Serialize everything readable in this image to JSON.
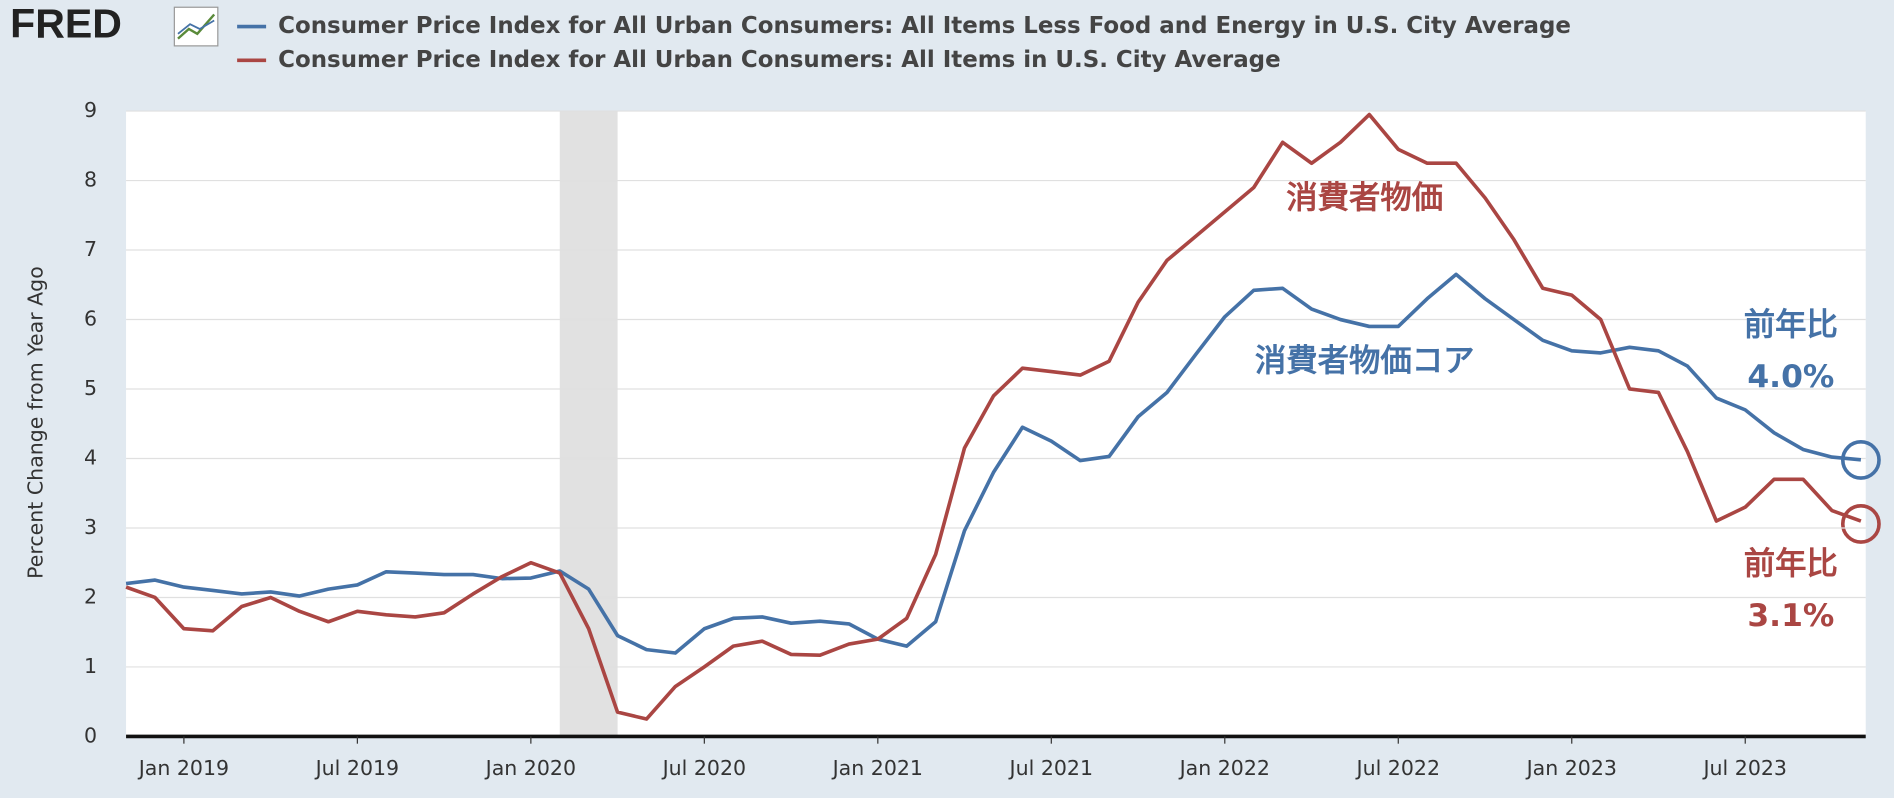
{
  "logo": "FRED",
  "chart_data": {
    "type": "line",
    "ylabel": "Percent Change from Year Ago",
    "x": [
      "2018-11",
      "2018-12",
      "2019-01",
      "2019-02",
      "2019-03",
      "2019-04",
      "2019-05",
      "2019-06",
      "2019-07",
      "2019-08",
      "2019-09",
      "2019-10",
      "2019-11",
      "2019-12",
      "2020-01",
      "2020-02",
      "2020-03",
      "2020-04",
      "2020-05",
      "2020-06",
      "2020-07",
      "2020-08",
      "2020-09",
      "2020-10",
      "2020-11",
      "2020-12",
      "2021-01",
      "2021-02",
      "2021-03",
      "2021-04",
      "2021-05",
      "2021-06",
      "2021-07",
      "2021-08",
      "2021-09",
      "2021-10",
      "2021-11",
      "2021-12",
      "2022-01",
      "2022-02",
      "2022-03",
      "2022-04",
      "2022-05",
      "2022-06",
      "2022-07",
      "2022-08",
      "2022-09",
      "2022-10",
      "2022-11",
      "2022-12",
      "2023-01",
      "2023-02",
      "2023-03",
      "2023-04",
      "2023-05",
      "2023-06",
      "2023-07",
      "2023-08",
      "2023-09",
      "2023-10",
      "2023-11"
    ],
    "series": [
      {
        "name": "Consumer Price Index for All Urban Consumers: All Items Less Food and Energy in U.S. City Average",
        "color": "#4572a7",
        "values": [
          2.2,
          2.25,
          2.15,
          2.1,
          2.05,
          2.08,
          2.02,
          2.12,
          2.18,
          2.37,
          2.35,
          2.33,
          2.33,
          2.27,
          2.28,
          2.38,
          2.12,
          1.45,
          1.25,
          1.2,
          1.55,
          1.7,
          1.72,
          1.63,
          1.66,
          1.62,
          1.4,
          1.3,
          1.65,
          2.96,
          3.8,
          4.45,
          4.25,
          3.97,
          4.03,
          4.6,
          4.95,
          5.5,
          6.04,
          6.42,
          6.45,
          6.15,
          6.0,
          5.9,
          5.9,
          6.3,
          6.65,
          6.3,
          6.0,
          5.7,
          5.55,
          5.52,
          5.6,
          5.55,
          5.33,
          4.87,
          4.7,
          4.37,
          4.13,
          4.02,
          3.98
        ]
      },
      {
        "name": "Consumer Price Index for All Urban Consumers: All Items in U.S. City Average",
        "color": "#aa4643",
        "values": [
          2.15,
          2.0,
          1.55,
          1.52,
          1.87,
          2.0,
          1.8,
          1.65,
          1.8,
          1.75,
          1.72,
          1.78,
          2.05,
          2.3,
          2.5,
          2.35,
          1.55,
          0.35,
          0.25,
          0.72,
          1.0,
          1.3,
          1.37,
          1.18,
          1.17,
          1.33,
          1.4,
          1.7,
          2.62,
          4.15,
          4.9,
          5.3,
          5.25,
          5.2,
          5.4,
          6.25,
          6.85,
          7.2,
          7.55,
          7.9,
          8.55,
          8.25,
          8.55,
          8.95,
          8.45,
          8.25,
          8.25,
          7.75,
          7.15,
          6.45,
          6.35,
          6.0,
          5.0,
          4.95,
          4.1,
          3.1,
          3.3,
          3.7,
          3.7,
          3.25,
          3.1
        ]
      }
    ],
    "ylim": [
      0,
      9
    ],
    "yticks": [
      0,
      1,
      2,
      3,
      4,
      5,
      6,
      7,
      8,
      9
    ],
    "xticks": [
      {
        "value": "2019-01",
        "label": "Jan 2019"
      },
      {
        "value": "2019-07",
        "label": "Jul 2019"
      },
      {
        "value": "2020-01",
        "label": "Jan 2020"
      },
      {
        "value": "2020-07",
        "label": "Jul 2020"
      },
      {
        "value": "2021-01",
        "label": "Jan 2021"
      },
      {
        "value": "2021-07",
        "label": "Jul 2021"
      },
      {
        "value": "2022-01",
        "label": "Jan 2022"
      },
      {
        "value": "2022-07",
        "label": "Jul 2022"
      },
      {
        "value": "2023-01",
        "label": "Jan 2023"
      },
      {
        "value": "2023-07",
        "label": "Jul 2023"
      }
    ],
    "recession": {
      "start": "2020-02",
      "end": "2020-04"
    },
    "grid": true,
    "annotations": [
      "消費者物価",
      "消費者物価コア",
      "前年比",
      "4.0%",
      "前年比",
      "3.1%"
    ]
  }
}
